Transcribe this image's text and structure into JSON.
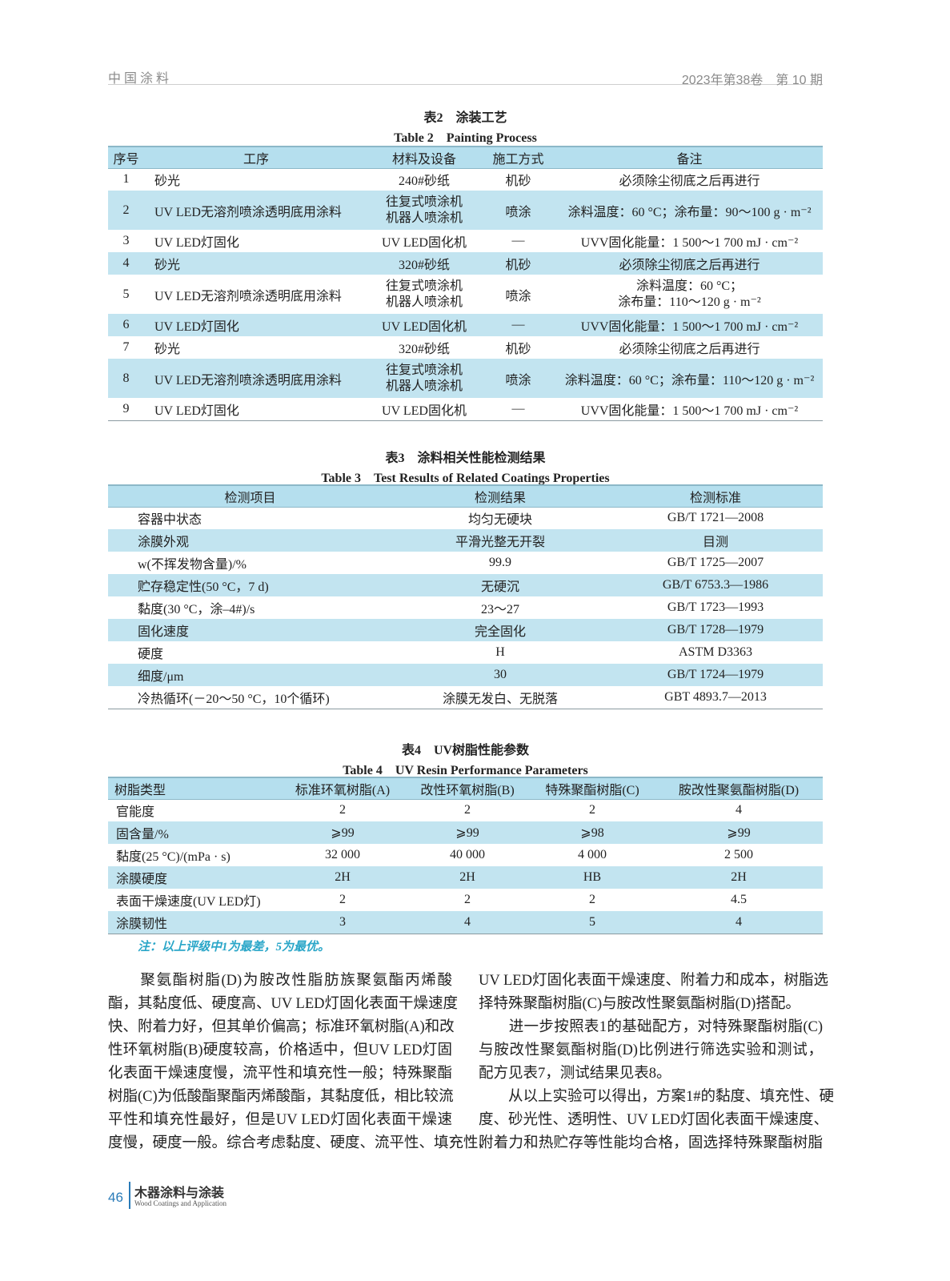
{
  "header": {
    "journal": "中国涂料",
    "issue": "2023年第38卷　第 10 期"
  },
  "table2": {
    "title_cn": "表2　涂装工艺",
    "title_en": "Table 2　Painting Process",
    "columns": [
      "序号",
      "工序",
      "材料及设备",
      "施工方式",
      "备注"
    ],
    "rows": [
      [
        "1",
        "砂光",
        "240#砂纸",
        "机砂",
        "必须除尘彻底之后再进行"
      ],
      [
        "2",
        "UV LED无溶剂喷涂透明底用涂料",
        "往复式喷涂机|机器人喷涂机",
        "喷涂",
        "涂料温度：60 °C；涂布量：90～100 g · m⁻²"
      ],
      [
        "3",
        "UV LED灯固化",
        "UV LED固化机",
        "—",
        "UVV固化能量：1 500～1 700 mJ · cm⁻²"
      ],
      [
        "4",
        "砂光",
        "320#砂纸",
        "机砂",
        "必须除尘彻底之后再进行"
      ],
      [
        "5",
        "UV LED无溶剂喷涂透明底用涂料",
        "往复式喷涂机|机器人喷涂机",
        "喷涂",
        "涂料温度：60 °C；|涂布量：110～120 g · m⁻²"
      ],
      [
        "6",
        "UV LED灯固化",
        "UV LED固化机",
        "—",
        "UVV固化能量：1 500～1 700 mJ · cm⁻²"
      ],
      [
        "7",
        "砂光",
        "320#砂纸",
        "机砂",
        "必须除尘彻底之后再进行"
      ],
      [
        "8",
        "UV LED无溶剂喷涂透明底用涂料",
        "往复式喷涂机|机器人喷涂机",
        "喷涂",
        "涂料温度：60 °C；涂布量：110～120 g · m⁻²"
      ],
      [
        "9",
        "UV LED灯固化",
        "UV LED固化机",
        "—",
        "UVV固化能量：1 500～1 700 mJ · cm⁻²"
      ]
    ]
  },
  "table3": {
    "title_cn": "表3　涂料相关性能检测结果",
    "title_en": "Table 3　Test Results of Related Coatings Properties",
    "columns": [
      "检测项目",
      "检测结果",
      "检测标准"
    ],
    "rows": [
      [
        "容器中状态",
        "均匀无硬块",
        "GB/T 1721—2008"
      ],
      [
        "涂膜外观",
        "平滑光整无开裂",
        "目测"
      ],
      [
        "w(不挥发物含量)/%",
        "99.9",
        "GB/T 1725—2007"
      ],
      [
        "贮存稳定性(50 °C，7 d)",
        "无硬沉",
        "GB/T 6753.3—1986"
      ],
      [
        "黏度(30 °C，涂–4#)/s",
        "23～27",
        "GB/T 1723—1993"
      ],
      [
        "固化速度",
        "完全固化",
        "GB/T 1728—1979"
      ],
      [
        "硬度",
        "H",
        "ASTM D3363"
      ],
      [
        "细度/μm",
        "30",
        "GB/T 1724—1979"
      ],
      [
        "冷热循环(－20～50 °C，10个循环)",
        "涂膜无发白、无脱落",
        "GBT 4893.7—2013"
      ]
    ]
  },
  "table4": {
    "title_cn": "表4　UV树脂性能参数",
    "title_en": "Table 4　UV Resin Performance Parameters",
    "columns": [
      "树脂类型",
      "标准环氧树脂(A)",
      "改性环氧树脂(B)",
      "特殊聚酯树脂(C)",
      "胺改性聚氨酯树脂(D)"
    ],
    "rows": [
      [
        "官能度",
        "2",
        "2",
        "2",
        "4"
      ],
      [
        "固含量/%",
        "⩾99",
        "⩾99",
        "⩾98",
        "⩾99"
      ],
      [
        "黏度(25 °C)/(mPa · s)",
        "32 000",
        "40 000",
        "4 000",
        "2 500"
      ],
      [
        "涂膜硬度",
        "2H",
        "2H",
        "HB",
        "2H"
      ],
      [
        "表面干燥速度(UV LED灯)",
        "2",
        "2",
        "2",
        "4.5"
      ],
      [
        "涂膜韧性",
        "3",
        "4",
        "5",
        "4"
      ]
    ],
    "note": "注：以上评级中1为最差，5为最优。"
  },
  "body": {
    "left": [
      "　　聚氨酯树脂(D)为胺改性脂肪族聚氨酯丙烯酸",
      "酯，其黏度低、硬度高、UV LED灯固化表面干燥速度",
      "快、附着力好，但其单价偏高；标准环氧树脂(A)和改",
      "性环氧树脂(B)硬度较高，价格适中，但UV LED灯固",
      "化表面干燥速度慢，流平性和填充性一般；特殊聚酯",
      "树脂(C)为低酸酯聚酯丙烯酸酯，其黏度低，相比较流",
      "平性和填充性最好，但是UV LED灯固化表面干燥速",
      "度慢，硬度一般。综合考虑黏度、硬度、流平性、填充性、"
    ],
    "right": [
      "UV LED灯固化表面干燥速度、附着力和成本，树脂选",
      "择特殊聚酯树脂(C)与胺改性聚氨酯树脂(D)搭配。",
      "　　进一步按照表1的基础配方，对特殊聚酯树脂(C)",
      "与胺改性聚氨酯树脂(D)比例进行筛选实验和测试，",
      "配方见表7，测试结果见表8。",
      "　　从以上实验可以得出，方案1#的黏度、填充性、硬",
      "度、砂光性、透明性、UV LED灯固化表面干燥速度、",
      "附着力和热贮存等性能均合格，固选择特殊聚酯树脂"
    ]
  },
  "footer": {
    "page": "46",
    "journal_cn": "木器涂料与涂装",
    "journal_en": "Wood Coatings and Application"
  },
  "colors": {
    "table_header": "#b5dfee",
    "table_stripe": "#c2e4f0",
    "note": "#2aa6c8",
    "footer_accent": "#2a7bb8"
  }
}
